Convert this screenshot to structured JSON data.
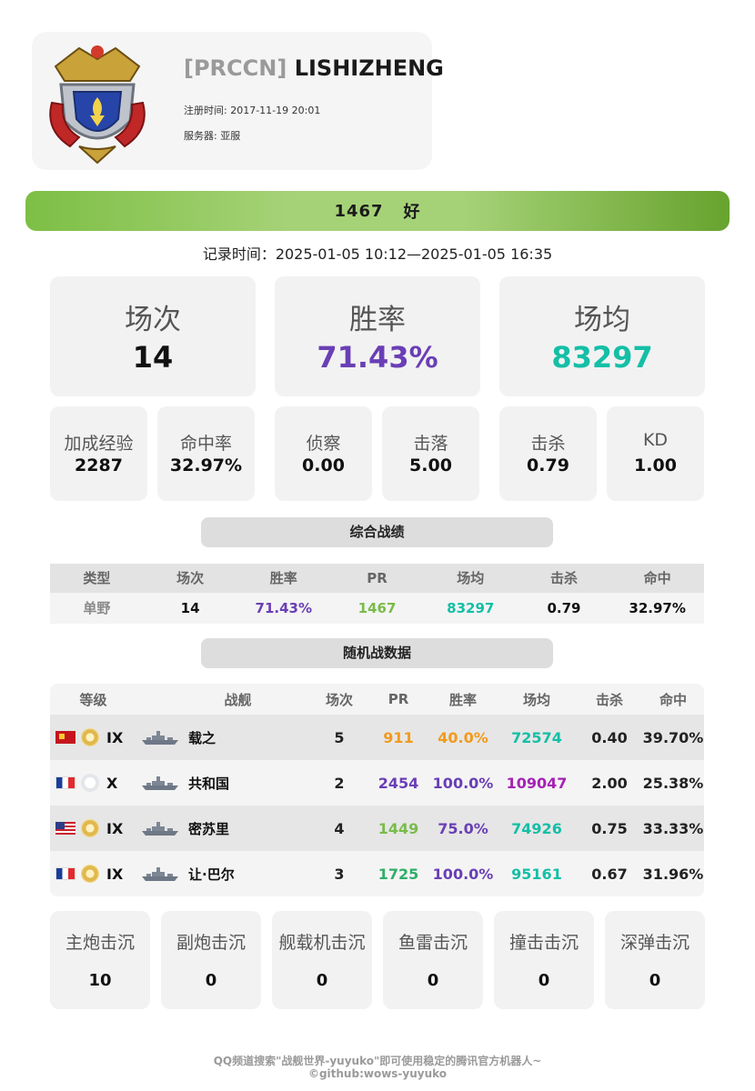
{
  "colors": {
    "purple": "#6a3fb5",
    "teal": "#14bfa6",
    "green": "#79bb4a",
    "orange": "#f29a1a",
    "magenta": "#a522b5",
    "grey_label": "#8a8a8a",
    "pr_bar": "#a6d277"
  },
  "profile": {
    "crest_icon": "clan-crest-icon",
    "clan_tag": "[PRCCN]",
    "username": "LISHIZHENG",
    "register_time": "注册时间: 2017-11-19 20:01",
    "server": "服务器: 亚服"
  },
  "rating": {
    "pr": "1467",
    "level": "好"
  },
  "record_time": "记录时间：2025-01-05 10:12—2025-01-05 16:35",
  "overview": {
    "games": {
      "label": "场次",
      "value": "14"
    },
    "winrate": {
      "label": "胜率",
      "value": "71.43%"
    },
    "avg_damage": {
      "label": "场均",
      "value": "83297"
    }
  },
  "details": [
    {
      "label": "加成经验",
      "value": "2287"
    },
    {
      "label": "命中率",
      "value": "32.97%"
    },
    {
      "label": "侦察",
      "value": "0.00"
    },
    {
      "label": "击落",
      "value": "5.00"
    },
    {
      "label": "击杀",
      "value": "0.79"
    },
    {
      "label": "KD",
      "value": "1.00"
    }
  ],
  "summary": {
    "title": "综合战绩",
    "headers": [
      "类型",
      "场次",
      "胜率",
      "PR",
      "场均",
      "击杀",
      "命中"
    ],
    "row": {
      "type": "单野",
      "games": "14",
      "winrate": "71.43%",
      "pr": "1467",
      "avg": "83297",
      "kills": "0.79",
      "hit": "32.97%"
    }
  },
  "random": {
    "title": "随机战数据",
    "headers": [
      "等级",
      "战舰",
      "场次",
      "PR",
      "胜率",
      "场均",
      "击杀",
      "命中"
    ],
    "rows": [
      {
        "flag": "china-flag-icon",
        "badge": "gold-badge-icon",
        "tier": "IX",
        "ship_icon": "ship-silhouette-icon",
        "ship": "载之",
        "games": "5",
        "pr": "911",
        "winrate": "40.0%",
        "avg": "72574",
        "kills": "0.40",
        "hit": "39.70%",
        "pr_color": "#f29a1a",
        "wr_color": "#f29a1a",
        "avg_color": "#14bfa6"
      },
      {
        "flag": "france-flag-icon",
        "badge": "silver-badge-icon",
        "tier": "X",
        "ship_icon": "ship-silhouette-icon",
        "ship": "共和国",
        "games": "2",
        "pr": "2454",
        "winrate": "100.0%",
        "avg": "109047",
        "kills": "2.00",
        "hit": "25.38%",
        "pr_color": "#6a3fb5",
        "wr_color": "#6a3fb5",
        "avg_color": "#a522b5"
      },
      {
        "flag": "usa-flag-icon",
        "badge": "gold-badge-icon",
        "tier": "IX",
        "ship_icon": "ship-silhouette-icon",
        "ship": "密苏里",
        "games": "4",
        "pr": "1449",
        "winrate": "75.0%",
        "avg": "74926",
        "kills": "0.75",
        "hit": "33.33%",
        "pr_color": "#79bb4a",
        "wr_color": "#6a3fb5",
        "avg_color": "#14bfa6"
      },
      {
        "flag": "france-flag-icon",
        "badge": "gold-badge-icon",
        "tier": "IX",
        "ship_icon": "ship-silhouette-icon",
        "ship": "让·巴尔",
        "games": "3",
        "pr": "1725",
        "winrate": "100.0%",
        "avg": "95161",
        "kills": "0.67",
        "hit": "31.96%",
        "pr_color": "#2fae6a",
        "wr_color": "#6a3fb5",
        "avg_color": "#14bfa6"
      }
    ]
  },
  "kills_by_type": [
    {
      "label": "主炮击沉",
      "value": "10"
    },
    {
      "label": "副炮击沉",
      "value": "0"
    },
    {
      "label": "舰载机击沉",
      "value": "0"
    },
    {
      "label": "鱼雷击沉",
      "value": "0"
    },
    {
      "label": "撞击击沉",
      "value": "0"
    },
    {
      "label": "深弹击沉",
      "value": "0"
    }
  ],
  "footer": {
    "line1": "QQ频道搜索\"战舰世界-yuyuko\"即可使用稳定的腾讯官方机器人~",
    "line2": "©github:wows-yuyuko"
  }
}
